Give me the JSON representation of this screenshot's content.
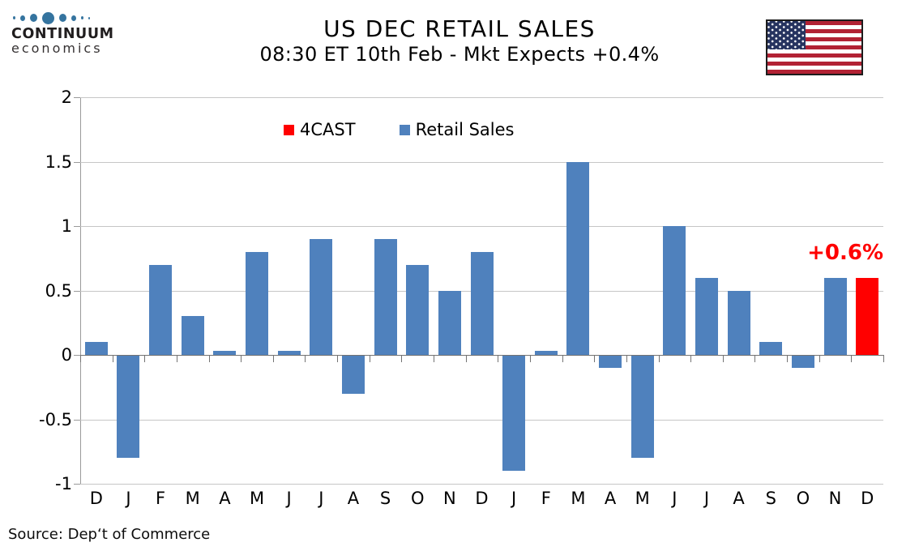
{
  "logo": {
    "line1": "CONTINUUM",
    "line2": "economics"
  },
  "source": "Source: Dep‘t of Commerce",
  "chart_data": {
    "type": "bar",
    "title": "US DEC RETAIL SALES",
    "subtitle": "08:30 ET 10th Feb - Mkt Expects +0.4%",
    "xlabel": "",
    "ylabel": "",
    "ylim": [
      -1,
      2
    ],
    "yticks": [
      "2",
      "1.5",
      "1",
      "0.5",
      "0",
      "-0.5",
      "-1"
    ],
    "grid": true,
    "legend_position": "top-inside",
    "legend": [
      {
        "label": "4CAST",
        "color": "#FF0000"
      },
      {
        "label": "Retail Sales",
        "color": "#4F81BD"
      }
    ],
    "annotation": {
      "text": "+0.6%",
      "color": "#FF0000"
    },
    "categories": [
      "D",
      "J",
      "F",
      "M",
      "A",
      "M",
      "J",
      "J",
      "A",
      "S",
      "O",
      "N",
      "D",
      "J",
      "F",
      "M",
      "A",
      "M",
      "J",
      "J",
      "A",
      "S",
      "O",
      "N",
      "D"
    ],
    "series": [
      {
        "name": "Retail Sales",
        "color": "#4F81BD",
        "values": [
          0.1,
          -0.8,
          0.7,
          0.3,
          0.03,
          0.8,
          0.03,
          0.9,
          -0.3,
          0.9,
          0.7,
          0.5,
          0.8,
          -0.9,
          0.03,
          1.5,
          -0.1,
          -0.8,
          1.0,
          0.6,
          0.5,
          0.1,
          -0.1,
          0.6,
          null
        ]
      },
      {
        "name": "4CAST",
        "color": "#FF0000",
        "values": [
          null,
          null,
          null,
          null,
          null,
          null,
          null,
          null,
          null,
          null,
          null,
          null,
          null,
          null,
          null,
          null,
          null,
          null,
          null,
          null,
          null,
          null,
          null,
          null,
          0.6
        ]
      }
    ]
  }
}
